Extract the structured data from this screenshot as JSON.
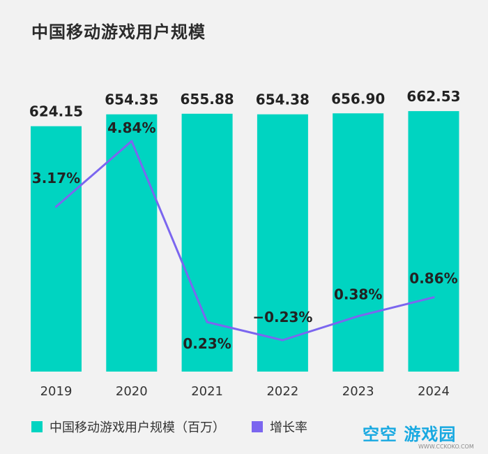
{
  "colors": {
    "bar": "#00d4c1",
    "line": "#7b66ef",
    "background": "#f2f2f2"
  },
  "watermark": {
    "text": "空空 游戏园",
    "url": "WWW.CCKOKO.COM"
  },
  "chart_data": {
    "type": "bar",
    "title": "中国移动游戏用户规模",
    "categories": [
      "2019",
      "2020",
      "2021",
      "2022",
      "2023",
      "2024"
    ],
    "ylim": [
      0,
      700
    ],
    "series": [
      {
        "name": "中国移动游戏用户规模（百万）",
        "kind": "bar",
        "values": [
          624.15,
          654.35,
          655.88,
          654.38,
          656.9,
          662.53
        ],
        "labels": [
          "624.15",
          "654.35",
          "655.88",
          "654.38",
          "656.90",
          "662.53"
        ]
      },
      {
        "name": "增长率",
        "kind": "line",
        "values": [
          3.17,
          4.84,
          0.23,
          -0.23,
          0.38,
          0.86
        ],
        "labels": [
          "3.17%",
          "4.84%",
          "0.23%",
          "−0.23%",
          "0.38%",
          "0.86%"
        ]
      }
    ],
    "legend_position": "bottom-left",
    "grid": false
  }
}
